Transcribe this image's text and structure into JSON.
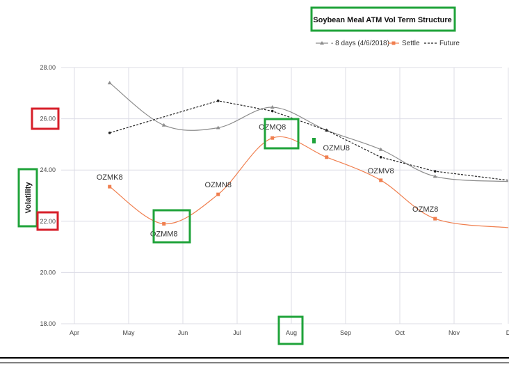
{
  "chart_data": {
    "type": "line",
    "title": "Soybean Meal ATM Vol Term Structure",
    "ylabel": "Volatility",
    "xlabel": "",
    "ylim": [
      18,
      28
    ],
    "yticks": [
      "18.00",
      "20.00",
      "22.00",
      "24.00",
      "26.00",
      "28.00"
    ],
    "xticks": [
      "Apr",
      "May",
      "Jun",
      "Jul",
      "Aug",
      "Sep",
      "Oct",
      "Nov",
      "D"
    ],
    "grid": true,
    "legend_position": "top-right",
    "series": [
      {
        "name": "- 8 days (4/6/2018)",
        "style": "solid-triangle",
        "color": "#8c8c8c",
        "x": [
          0.65,
          1.65,
          2.65,
          3.65,
          4.65,
          5.65,
          6.65
        ],
        "values": [
          27.4,
          25.75,
          25.65,
          26.45,
          25.55,
          24.8,
          23.75
        ]
      },
      {
        "name": "Settle",
        "style": "solid-square",
        "color": "#f07f4f",
        "x": [
          0.65,
          1.65,
          2.65,
          3.65,
          4.65,
          5.65,
          6.65
        ],
        "values": [
          23.35,
          21.9,
          23.05,
          25.25,
          24.5,
          23.6,
          22.1
        ],
        "labels": [
          "OZMK8",
          "OZMM8",
          "OZMN8",
          "OZMQ8",
          "OZMU8",
          "OZMV8",
          "OZMZ8"
        ]
      },
      {
        "name": "Future",
        "style": "dashed",
        "color": "#222222",
        "x": [
          0.65,
          2.65,
          3.65,
          4.65,
          5.65,
          6.65
        ],
        "values": [
          25.45,
          26.7,
          26.3,
          25.55,
          24.5,
          23.95
        ]
      }
    ],
    "highlights": {
      "green_boxes": [
        "title",
        "ylabel",
        "OZMM8",
        "OZMQ8",
        "Aug"
      ],
      "red_boxes": [
        "26.00",
        "22.00"
      ],
      "green_color": "#1fa33a",
      "red_color": "#d71f2a"
    }
  }
}
